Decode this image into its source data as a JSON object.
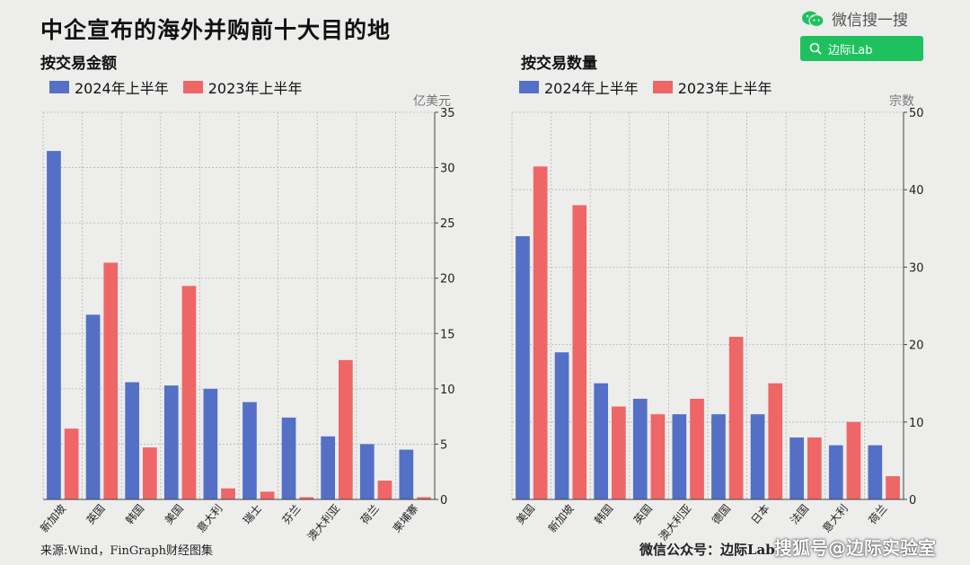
{
  "title": "中企宣布的海外并购前十大目的地",
  "wechat": {
    "label": "微信搜一搜",
    "search_label": "边际Lab"
  },
  "footer": {
    "source": "来源:Wind，FinGraph财经图集",
    "publisher": "微信公众号：边际Lab",
    "watermark": "搜狐号@边际实验室"
  },
  "colors": {
    "s2024": "#5470c6",
    "s2023": "#ee6666"
  },
  "chart_data": [
    {
      "type": "bar",
      "title": "按交易金额",
      "ylabel": "亿美元",
      "ylim": [
        0,
        35
      ],
      "yticks": [
        0,
        5,
        10,
        15,
        20,
        25,
        30,
        35
      ],
      "categories": [
        "新加坡",
        "英国",
        "韩国",
        "美国",
        "意大利",
        "瑞士",
        "芬兰",
        "澳大利亚",
        "荷兰",
        "柬埔寨"
      ],
      "series": [
        {
          "name": "2024年上半年",
          "values": [
            31.5,
            16.7,
            10.6,
            10.3,
            10.0,
            8.8,
            7.4,
            5.7,
            5.0,
            4.5
          ]
        },
        {
          "name": "2023年上半年",
          "values": [
            6.4,
            21.4,
            4.7,
            19.3,
            1.0,
            0.7,
            0.2,
            12.6,
            1.7,
            0.2
          ]
        }
      ],
      "legend": "top-left",
      "grid": true
    },
    {
      "type": "bar",
      "title": "按交易数量",
      "ylabel": "宗数",
      "ylim": [
        0,
        50
      ],
      "yticks": [
        0,
        10,
        20,
        30,
        40,
        50
      ],
      "categories": [
        "美国",
        "新加坡",
        "韩国",
        "英国",
        "澳大利亚",
        "德国",
        "日本",
        "法国",
        "意大利",
        "荷兰"
      ],
      "series": [
        {
          "name": "2024年上半年",
          "values": [
            34,
            19,
            15,
            13,
            11,
            11,
            11,
            8,
            7,
            7
          ]
        },
        {
          "name": "2023年上半年",
          "values": [
            43,
            38,
            12,
            11,
            13,
            21,
            15,
            8,
            10,
            3
          ]
        }
      ],
      "legend": "top-left",
      "grid": true
    }
  ]
}
